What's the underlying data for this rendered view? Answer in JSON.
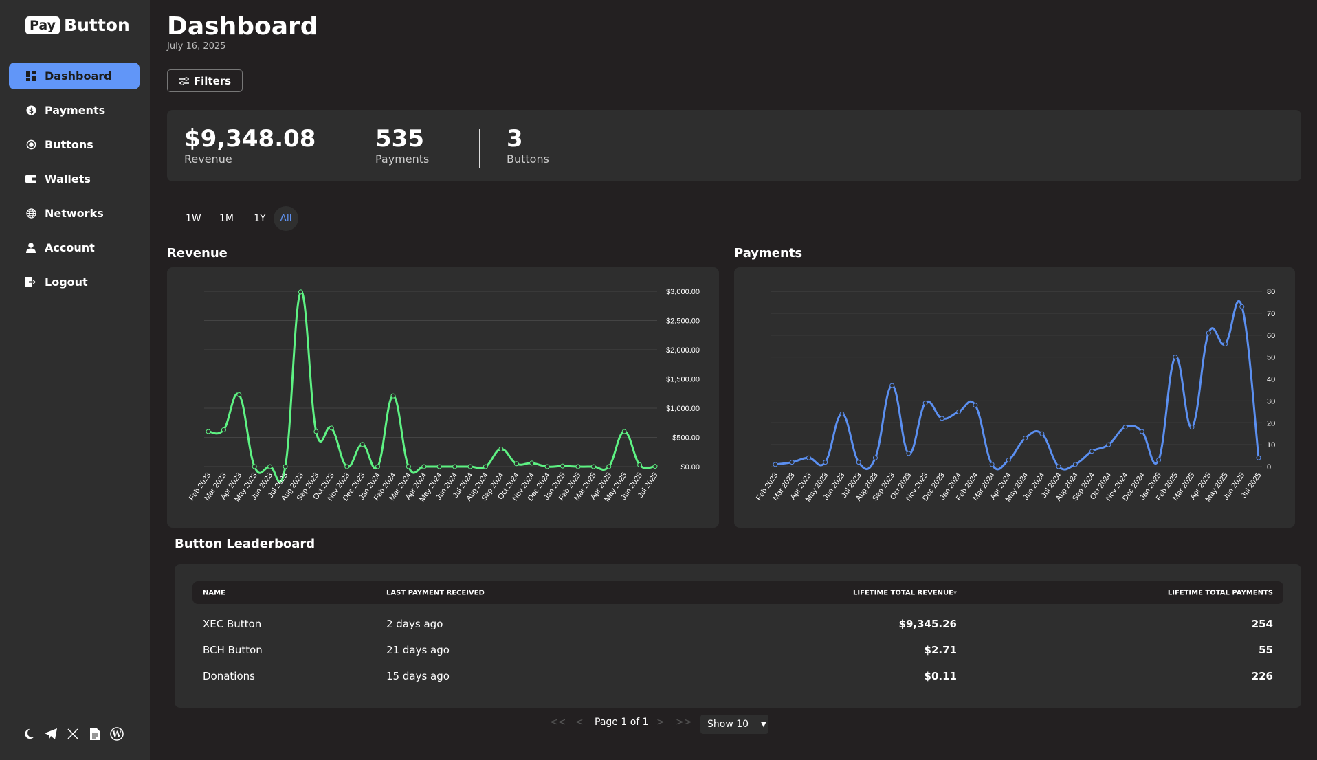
{
  "logo": {
    "pay": "Pay",
    "button": "Button"
  },
  "sidebar": {
    "items": [
      {
        "label": "Dashboard",
        "icon": "dashboard-icon",
        "active": true
      },
      {
        "label": "Payments",
        "icon": "dollar-icon"
      },
      {
        "label": "Buttons",
        "icon": "radio-button-icon"
      },
      {
        "label": "Wallets",
        "icon": "wallet-icon"
      },
      {
        "label": "Networks",
        "icon": "globe-icon"
      },
      {
        "label": "Account",
        "icon": "user-icon"
      },
      {
        "label": "Logout",
        "icon": "logout-icon"
      }
    ],
    "footer_icons": [
      "moon-icon",
      "telegram-icon",
      "x-icon",
      "document-icon",
      "wordpress-icon"
    ]
  },
  "header": {
    "title": "Dashboard",
    "date": "July 16, 2025",
    "filters_label": "Filters"
  },
  "stats": [
    {
      "value": "$9,348.08",
      "label": "Revenue"
    },
    {
      "value": "535",
      "label": "Payments"
    },
    {
      "value": "3",
      "label": "Buttons"
    }
  ],
  "ranges": {
    "options": [
      "1W",
      "1M",
      "1Y",
      "All"
    ],
    "selected": "All"
  },
  "colors": {
    "accent": "#6196f8",
    "revenue": "#5ef283",
    "payments": "#5b8ff0"
  },
  "chart_data": [
    {
      "type": "line",
      "title": "Revenue",
      "categories": [
        "Feb 2023",
        "Mar 2023",
        "Apr 2023",
        "May 2023",
        "Jun 2023",
        "Jul 2023",
        "Aug 2023",
        "Sep 2023",
        "Oct 2023",
        "Nov 2023",
        "Dec 2023",
        "Jan 2024",
        "Feb 2024",
        "Mar 2024",
        "Apr 2024",
        "May 2024",
        "Jun 2024",
        "Jul 2024",
        "Aug 2024",
        "Sep 2024",
        "Oct 2024",
        "Nov 2024",
        "Dec 2024",
        "Jan 2025",
        "Feb 2025",
        "Mar 2025",
        "Apr 2025",
        "May 2025",
        "Jun 2025",
        "Jul 2025"
      ],
      "values": [
        600,
        630,
        1230,
        0,
        0,
        0,
        2990,
        600,
        660,
        0,
        380,
        0,
        1210,
        0,
        0,
        0,
        0,
        0,
        0,
        300,
        50,
        60,
        0,
        10,
        0,
        0,
        0,
        600,
        30,
        5
      ],
      "yticks": [
        "$0.00",
        "$500.00",
        "$1,000.00",
        "$1,500.00",
        "$2,000.00",
        "$2,500.00",
        "$3,000.00"
      ],
      "ylim": [
        0,
        3000
      ],
      "grid": true,
      "y_axis_side": "right"
    },
    {
      "type": "line",
      "title": "Payments",
      "categories": [
        "Feb 2023",
        "Mar 2023",
        "Apr 2023",
        "May 2023",
        "Jun 2023",
        "Jul 2023",
        "Aug 2023",
        "Sep 2023",
        "Oct 2023",
        "Nov 2023",
        "Dec 2023",
        "Jan 2024",
        "Feb 2024",
        "Mar 2024",
        "Apr 2024",
        "May 2024",
        "Jun 2024",
        "Jul 2024",
        "Aug 2024",
        "Sep 2024",
        "Oct 2024",
        "Nov 2024",
        "Dec 2024",
        "Jan 2025",
        "Feb 2025",
        "Mar 2025",
        "Apr 2025",
        "May 2025",
        "Jun 2025",
        "Jul 2025"
      ],
      "values": [
        1,
        2,
        4,
        2,
        24,
        2,
        4,
        37,
        6,
        29,
        22,
        25,
        28,
        1,
        3,
        13,
        15,
        0,
        1,
        7,
        10,
        18,
        16,
        3,
        50,
        18,
        61,
        56,
        73,
        4
      ],
      "yticks": [
        "0",
        "10",
        "20",
        "30",
        "40",
        "50",
        "60",
        "70",
        "80"
      ],
      "ylim": [
        0,
        80
      ],
      "grid": true,
      "y_axis_side": "right"
    }
  ],
  "leaderboard": {
    "title": "Button Leaderboard",
    "columns": [
      "NAME",
      "LAST PAYMENT RECEIVED",
      "LIFETIME TOTAL REVENUE",
      "LIFETIME TOTAL PAYMENTS"
    ],
    "sort_indicator": "▾",
    "rows": [
      {
        "name": "XEC Button",
        "last": "2 days ago",
        "revenue": "$9,345.26",
        "payments": "254"
      },
      {
        "name": "BCH Button",
        "last": "21 days ago",
        "revenue": "$2.71",
        "payments": "55"
      },
      {
        "name": "Donations",
        "last": "15 days ago",
        "revenue": "$0.11",
        "payments": "226"
      }
    ]
  },
  "pagination": {
    "first": "<<",
    "prev": "<",
    "page": "Page 1 of 1",
    "next": ">",
    "last": ">>",
    "show": "Show 10"
  }
}
